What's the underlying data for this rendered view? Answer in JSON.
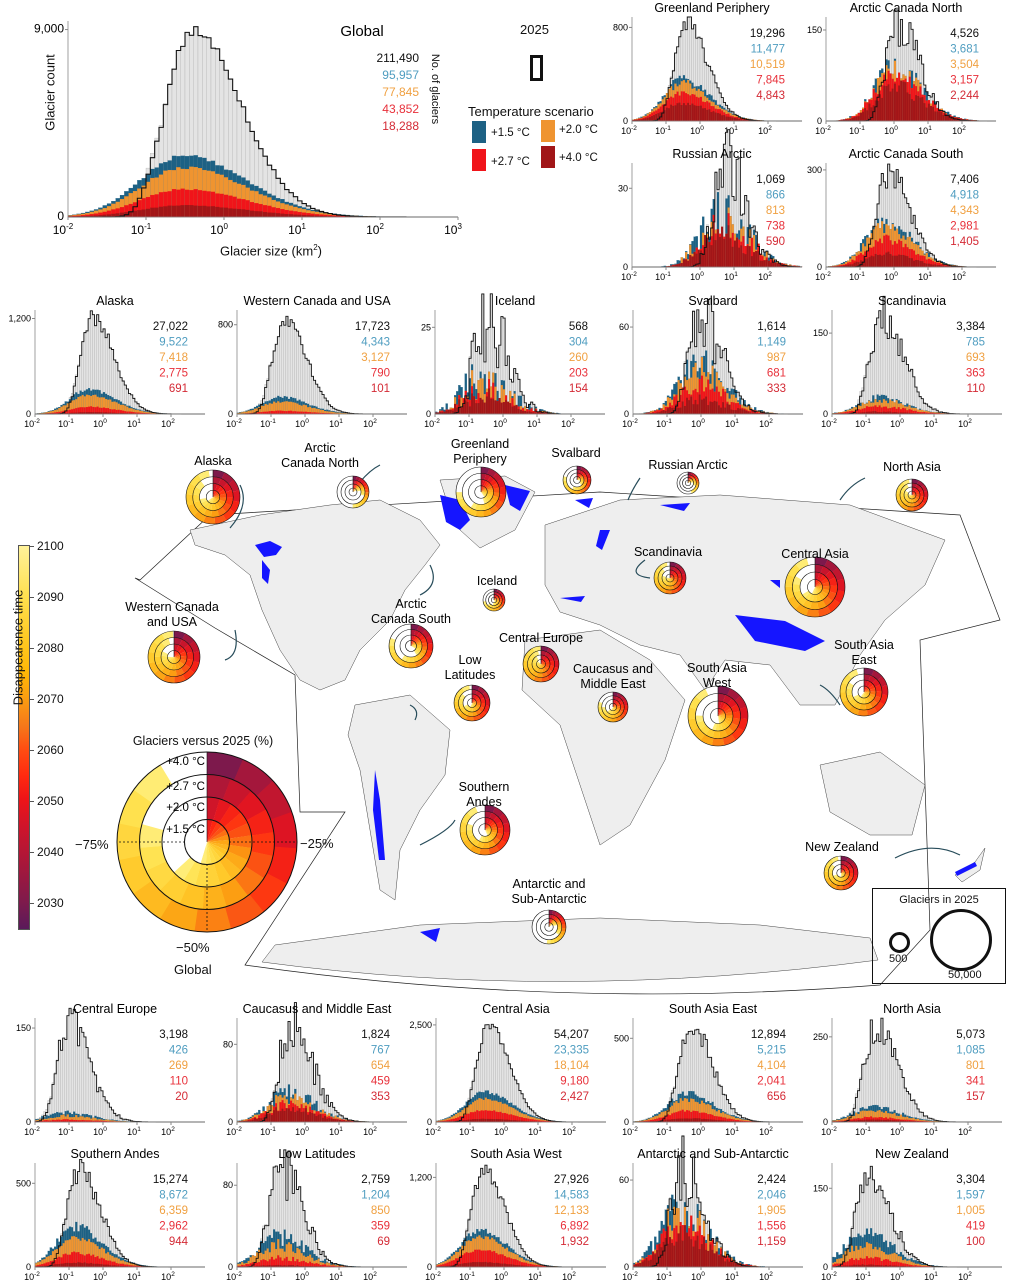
{
  "legend": {
    "year_label": "2025",
    "scenario_title": "Temperature scenario",
    "scenarios": [
      {
        "label": "+1.5 °C",
        "color": "#1d6184",
        "text_color": "#4f9dc0"
      },
      {
        "label": "+2.0 °C",
        "color": "#ef9430",
        "text_color": "#f0a040"
      },
      {
        "label": "+2.7 °C",
        "color": "#f0141a",
        "text_color": "#e8303a"
      },
      {
        "label": "+4.0 °C",
        "color": "#a11618",
        "text_color": "#d42a35"
      }
    ],
    "total_color": "#111111",
    "count_label": "No. of glaciers"
  },
  "axes": {
    "y_label": "Glacier count",
    "x_label": "Glacier size (km",
    "x_label_sup": "2",
    "x_label_end": ")"
  },
  "colorbar": {
    "label": "Disappearence time",
    "ticks": [
      "2100",
      "2090",
      "2080",
      "2070",
      "2060",
      "2050",
      "2040",
      "2030"
    ]
  },
  "map": {
    "regions": [
      {
        "label_lines": [
          "Alaska"
        ]
      },
      {
        "label_lines": [
          "Arctic",
          "Canada North"
        ]
      },
      {
        "label_lines": [
          "Greenland",
          "Periphery"
        ]
      },
      {
        "label_lines": [
          "Svalbard"
        ]
      },
      {
        "label_lines": [
          "Russian Arctic"
        ]
      },
      {
        "label_lines": [
          "North Asia"
        ]
      },
      {
        "label_lines": [
          "Scandinavia"
        ]
      },
      {
        "label_lines": [
          "Central Asia"
        ]
      },
      {
        "label_lines": [
          "Iceland"
        ]
      },
      {
        "label_lines": [
          "Western Canada",
          "and USA"
        ]
      },
      {
        "label_lines": [
          "Arctic",
          "Canada South"
        ]
      },
      {
        "label_lines": [
          "Central Europe"
        ]
      },
      {
        "label_lines": [
          "Low",
          "Latitudes"
        ]
      },
      {
        "label_lines": [
          "Caucasus and",
          "Middle East"
        ]
      },
      {
        "label_lines": [
          "South Asia",
          "West"
        ]
      },
      {
        "label_lines": [
          "South Asia",
          "East"
        ]
      },
      {
        "label_lines": [
          "Southern",
          "Andes"
        ]
      },
      {
        "label_lines": [
          "New Zealand"
        ]
      },
      {
        "label_lines": [
          "Antarctic and",
          "Sub-Antarctic"
        ]
      }
    ],
    "global_donut": {
      "title": "Glaciers versus 2025 (%)",
      "ring_labels": [
        "+4.0 °C",
        "+2.7 °C",
        "+2.0 °C",
        "+1.5 °C"
      ],
      "pct_left": "−75%",
      "pct_right": "−25%",
      "pct_bottom": "−50%",
      "name": "Global"
    },
    "size_legend": {
      "title": "Glaciers in 2025",
      "small": "500",
      "large": "50,000"
    }
  },
  "chart_data": [
    {
      "type": "bar",
      "title": "Global",
      "ytick": "9,000",
      "counts": [
        "211,490",
        "95,957",
        "77,845",
        "43,852",
        "18,288"
      ],
      "mode_km2": 0.4,
      "peak_count": 8950,
      "x_ticks": [
        -2,
        -1,
        0,
        1,
        2,
        3
      ],
      "xlim": [
        0.01,
        1000
      ]
    },
    {
      "type": "bar",
      "title": "Greenland Periphery",
      "ytick": "800",
      "counts": [
        "19,296",
        "11,477",
        "10,519",
        "7,845",
        "4,843"
      ],
      "mode_km2": 0.4,
      "peak_count": 830,
      "x_ticks": [
        -2,
        -1,
        0,
        1,
        2
      ],
      "xlim": [
        0.01,
        1000
      ]
    },
    {
      "type": "bar",
      "title": "Arctic Canada North",
      "ytick": "150",
      "counts": [
        "4,526",
        "3,681",
        "3,504",
        "3,157",
        "2,244"
      ],
      "mode_km2": 1.3,
      "peak_count": 160,
      "x_ticks": [
        -2,
        -1,
        0,
        1,
        2
      ],
      "xlim": [
        0.01,
        1000
      ]
    },
    {
      "type": "bar",
      "title": "Russian Arctic",
      "ytick": "30",
      "counts": [
        "1,069",
        "866",
        "813",
        "738",
        "590"
      ],
      "mode_km2": 5,
      "peak_count": 37,
      "x_ticks": [
        -2,
        -1,
        0,
        1,
        2
      ],
      "xlim": [
        0.01,
        1000
      ]
    },
    {
      "type": "bar",
      "title": "Arctic Canada South",
      "ytick": "300",
      "counts": [
        "7,406",
        "4,918",
        "4,343",
        "2,981",
        "1,405"
      ],
      "mode_km2": 0.7,
      "peak_count": 300,
      "x_ticks": [
        -2,
        -1,
        0,
        1,
        2
      ],
      "xlim": [
        0.01,
        1000
      ]
    },
    {
      "type": "bar",
      "title": "Alaska",
      "ytick": "1,200",
      "counts": [
        "27,022",
        "9,522",
        "7,418",
        "2,775",
        "691"
      ],
      "mode_km2": 0.5,
      "peak_count": 1220,
      "x_ticks": [
        -2,
        -1,
        0,
        1,
        2
      ],
      "xlim": [
        0.01,
        1000
      ]
    },
    {
      "type": "bar",
      "title": "Western Canada and USA",
      "ytick": "800",
      "counts": [
        "17,723",
        "4,343",
        "3,127",
        "790",
        "101"
      ],
      "mode_km2": 0.25,
      "peak_count": 870,
      "x_ticks": [
        -2,
        -1,
        0,
        1,
        2
      ],
      "xlim": [
        0.01,
        1000
      ]
    },
    {
      "type": "bar",
      "title": "Iceland",
      "ytick": "25",
      "counts": [
        "568",
        "304",
        "260",
        "203",
        "154"
      ],
      "mode_km2": 0.3,
      "peak_count": 28,
      "x_ticks": [
        -2,
        -1,
        0,
        1,
        2
      ],
      "xlim": [
        0.01,
        1000
      ]
    },
    {
      "type": "bar",
      "title": "Svalbard",
      "ytick": "60",
      "counts": [
        "1,614",
        "1,149",
        "987",
        "681",
        "333"
      ],
      "mode_km2": 1,
      "peak_count": 67,
      "x_ticks": [
        -2,
        -1,
        0,
        1,
        2
      ],
      "xlim": [
        0.01,
        1000
      ]
    },
    {
      "type": "bar",
      "title": "Scandinavia",
      "ytick": "150",
      "counts": [
        "3,384",
        "785",
        "693",
        "363",
        "110"
      ],
      "mode_km2": 0.3,
      "peak_count": 180,
      "x_ticks": [
        -2,
        -1,
        0,
        1,
        2
      ],
      "xlim": [
        0.01,
        1000
      ]
    },
    {
      "type": "bar",
      "title": "Central Europe",
      "ytick": "150",
      "counts": [
        "3,198",
        "426",
        "269",
        "110",
        "20"
      ],
      "mode_km2": 0.1,
      "peak_count": 155,
      "x_ticks": [
        -2,
        -1,
        0,
        1,
        2
      ],
      "xlim": [
        0.01,
        1000
      ]
    },
    {
      "type": "bar",
      "title": "Caucasus and Middle East",
      "ytick": "80",
      "counts": [
        "1,824",
        "767",
        "654",
        "459",
        "353"
      ],
      "mode_km2": 0.4,
      "peak_count": 100,
      "x_ticks": [
        -2,
        -1,
        0,
        1,
        2
      ],
      "xlim": [
        0.01,
        1000
      ]
    },
    {
      "type": "bar",
      "title": "Central Asia",
      "ytick": "2,500",
      "counts": [
        "54,207",
        "23,335",
        "18,104",
        "9,180",
        "2,427"
      ],
      "mode_km2": 0.35,
      "peak_count": 2500,
      "x_ticks": [
        -2,
        -1,
        0,
        1,
        2
      ],
      "xlim": [
        0.01,
        1000
      ]
    },
    {
      "type": "bar",
      "title": "South Asia East",
      "ytick": "500",
      "counts": [
        "12,894",
        "5,215",
        "4,104",
        "2,041",
        "656"
      ],
      "mode_km2": 0.5,
      "peak_count": 580,
      "x_ticks": [
        -2,
        -1,
        0,
        1,
        2
      ],
      "xlim": [
        0.01,
        1000
      ]
    },
    {
      "type": "bar",
      "title": "North Asia",
      "ytick": "250",
      "counts": [
        "5,073",
        "1,085",
        "801",
        "341",
        "157"
      ],
      "mode_km2": 0.2,
      "peak_count": 285,
      "x_ticks": [
        -2,
        -1,
        0,
        1,
        2
      ],
      "xlim": [
        0.01,
        1000
      ]
    },
    {
      "type": "bar",
      "title": "Southern Andes",
      "ytick": "500",
      "counts": [
        "15,274",
        "8,672",
        "6,359",
        "2,962",
        "944"
      ],
      "mode_km2": 0.2,
      "peak_count": 580,
      "x_ticks": [
        -2,
        -1,
        0,
        1,
        2
      ],
      "xlim": [
        0.01,
        1000
      ]
    },
    {
      "type": "bar",
      "title": "Low Latitudes",
      "ytick": "80",
      "counts": [
        "2,759",
        "1,204",
        "850",
        "359",
        "69"
      ],
      "mode_km2": 0.2,
      "peak_count": 95,
      "x_ticks": [
        -2,
        -1,
        0,
        1,
        2
      ],
      "xlim": [
        0.01,
        1000
      ]
    },
    {
      "type": "bar",
      "title": "South Asia West",
      "ytick": "1,200",
      "counts": [
        "27,926",
        "14,583",
        "12,133",
        "6,892",
        "1,932"
      ],
      "mode_km2": 0.25,
      "peak_count": 1300,
      "x_ticks": [
        -2,
        -1,
        0,
        1,
        2
      ],
      "xlim": [
        0.01,
        1000
      ]
    },
    {
      "type": "bar",
      "title": "Antarctic and Sub-Antarctic",
      "ytick": "60",
      "counts": [
        "2,424",
        "2,046",
        "1,905",
        "1,556",
        "1,159"
      ],
      "mode_km2": 0.3,
      "peak_count": 67,
      "x_ticks": [
        -2,
        -1,
        0,
        1,
        2
      ],
      "xlim": [
        0.01,
        1000
      ]
    },
    {
      "type": "bar",
      "title": "New Zealand",
      "ytick": "150",
      "counts": [
        "3,304",
        "1,597",
        "1,005",
        "419",
        "100"
      ],
      "mode_km2": 0.12,
      "peak_count": 185,
      "x_ticks": [
        -2,
        -1,
        0,
        1,
        2
      ],
      "xlim": [
        0.01,
        1000
      ]
    }
  ]
}
